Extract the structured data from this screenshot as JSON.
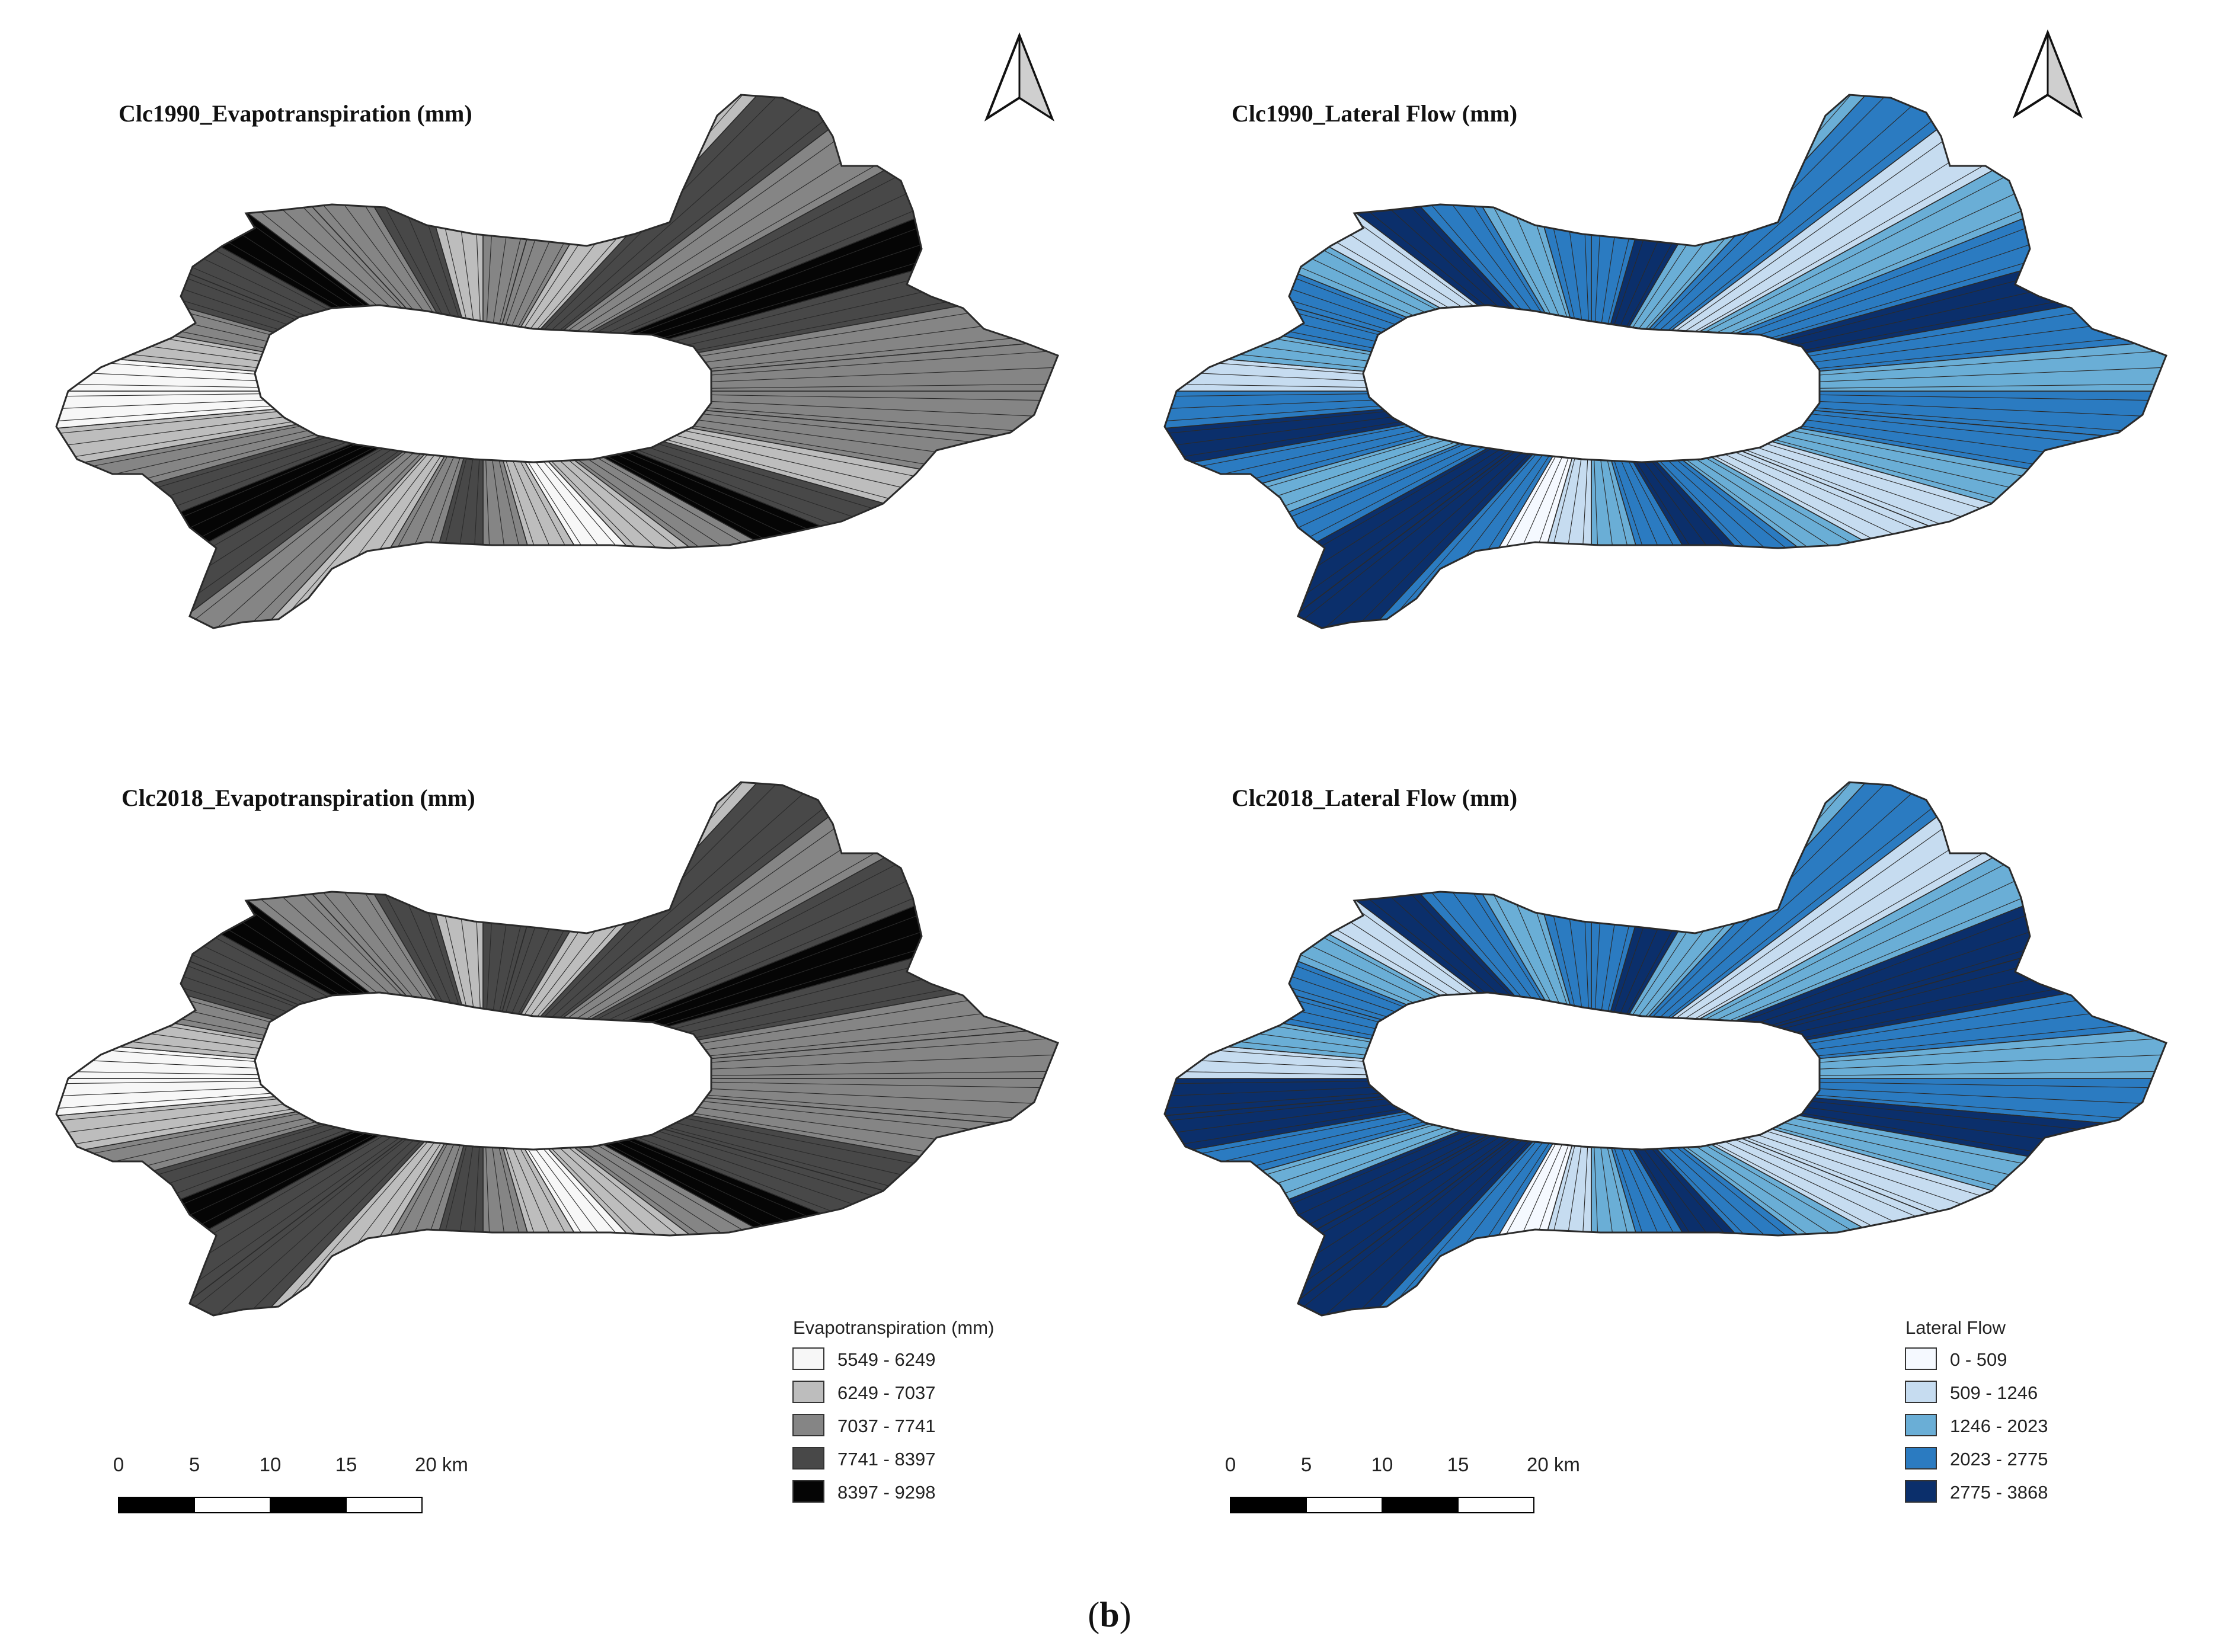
{
  "figure": {
    "caption_prefix": "(",
    "caption_letter": "b",
    "caption_suffix": ")"
  },
  "panels": [
    {
      "id": "p1",
      "title": "Clc1990_Evapotranspiration (mm)",
      "scheme": "evap",
      "year": 1990
    },
    {
      "id": "p2",
      "title": "Clc1990_Lateral Flow (mm)",
      "scheme": "lateral",
      "year": 1990
    },
    {
      "id": "p3",
      "title": "Clc2018_Evapotranspiration (mm)",
      "scheme": "evap",
      "year": 2018
    },
    {
      "id": "p4",
      "title": "Clc2018_Lateral Flow (mm)",
      "scheme": "lateral",
      "year": 2018
    }
  ],
  "legends": {
    "evap": {
      "title": "Evapotranspiration (mm)",
      "classes": [
        {
          "label": "5549 - 6249",
          "color": "#f7f7f7"
        },
        {
          "label": "6249 - 7037",
          "color": "#bdbdbd"
        },
        {
          "label": "7037 - 7741",
          "color": "#858585"
        },
        {
          "label": "7741 - 8397",
          "color": "#484848"
        },
        {
          "label": "8397 - 9298",
          "color": "#050505"
        }
      ]
    },
    "lateral": {
      "title": "Lateral Flow",
      "classes": [
        {
          "label": "0 - 509",
          "color": "#f5f9ff"
        },
        {
          "label": "509 - 1246",
          "color": "#c6dcf0"
        },
        {
          "label": "1246 - 2023",
          "color": "#6aaed6"
        },
        {
          "label": "2023 - 2775",
          "color": "#2b7bc1"
        },
        {
          "label": "2775 - 3868",
          "color": "#0b2f6b"
        }
      ]
    }
  },
  "scale_bar": {
    "ticks": [
      "0",
      "5",
      "10",
      "15",
      "20 km"
    ]
  },
  "north_arrow": {
    "icon": "north-arrow-icon"
  },
  "basin_color_pattern": {
    "evap_1990": [
      2,
      2,
      1,
      3,
      4,
      2,
      1,
      0,
      1,
      2,
      3,
      2,
      1,
      2,
      3,
      4,
      3,
      2,
      1,
      0,
      0,
      1,
      2,
      3,
      3,
      4,
      2,
      2,
      3,
      1,
      2,
      2,
      1,
      3,
      2,
      3,
      4,
      3,
      2,
      2
    ],
    "evap_2018": [
      2,
      2,
      3,
      3,
      4,
      2,
      1,
      0,
      1,
      2,
      3,
      2,
      1,
      3,
      3,
      4,
      3,
      2,
      1,
      0,
      0,
      1,
      2,
      3,
      3,
      4,
      2,
      2,
      3,
      1,
      3,
      3,
      1,
      3,
      2,
      3,
      4,
      3,
      2,
      2
    ],
    "lateral_1990": [
      3,
      3,
      2,
      1,
      1,
      2,
      3,
      4,
      3,
      2,
      1,
      0,
      3,
      4,
      4,
      3,
      2,
      3,
      4,
      3,
      1,
      2,
      3,
      3,
      2,
      1,
      4,
      3,
      2,
      3,
      3,
      4,
      2,
      3,
      1,
      2,
      3,
      4,
      3,
      2
    ],
    "lateral_2018": [
      3,
      4,
      2,
      1,
      1,
      2,
      3,
      4,
      3,
      2,
      1,
      0,
      3,
      4,
      4,
      4,
      2,
      3,
      4,
      4,
      1,
      2,
      3,
      3,
      2,
      1,
      4,
      3,
      2,
      3,
      3,
      4,
      2,
      3,
      1,
      2,
      4,
      4,
      3,
      2
    ]
  }
}
